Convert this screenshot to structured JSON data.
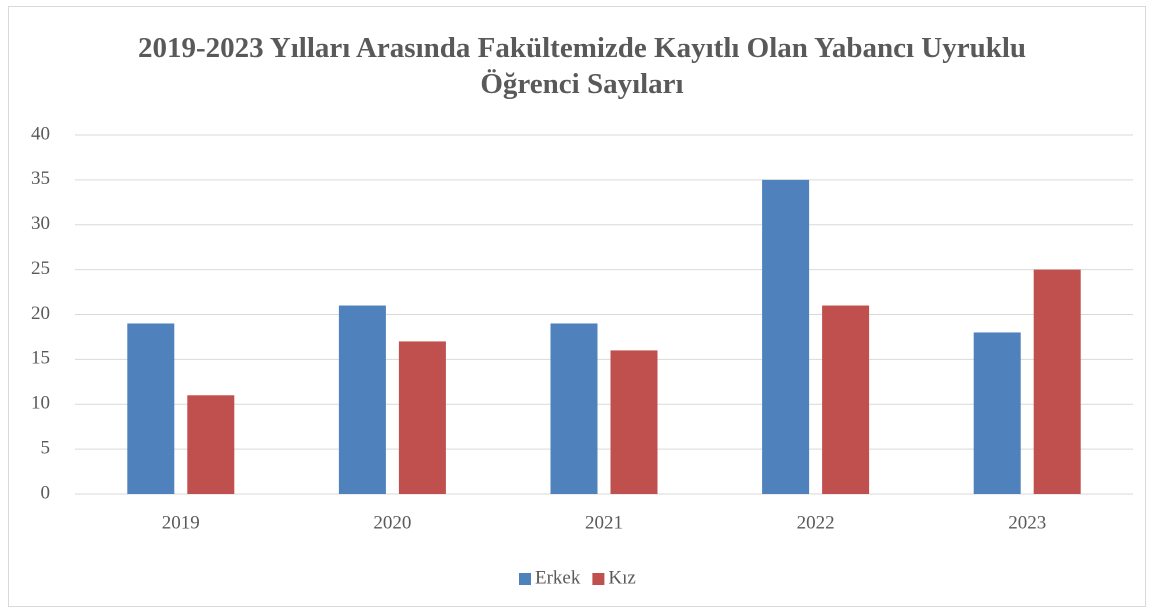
{
  "chart_data": {
    "type": "bar",
    "title": "2019-2023 Yılları Arasında Fakültemizde Kayıtlı Olan Yabancı Uyruklu Öğrenci Sayıları",
    "categories": [
      "2019",
      "2020",
      "2021",
      "2022",
      "2023"
    ],
    "series": [
      {
        "name": "Erkek",
        "color": "#4f81bd",
        "values": [
          19,
          21,
          19,
          35,
          18
        ]
      },
      {
        "name": "Kız",
        "color": "#c0504d",
        "values": [
          11,
          17,
          16,
          21,
          25
        ]
      }
    ],
    "ylim": [
      0,
      40
    ],
    "yticks": [
      0,
      5,
      10,
      15,
      20,
      25,
      30,
      35,
      40
    ],
    "grid": true,
    "legend": "bottom"
  }
}
